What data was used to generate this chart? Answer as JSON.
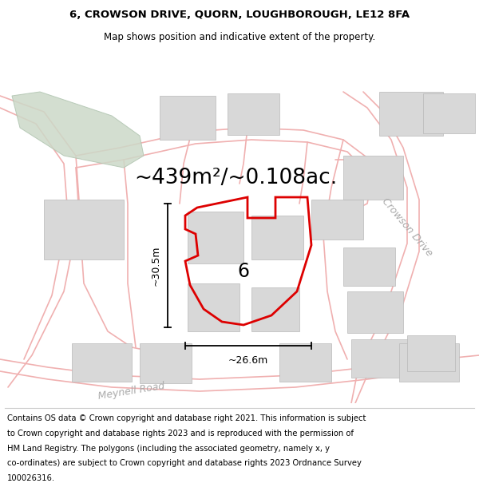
{
  "title_line1": "6, CROWSON DRIVE, QUORN, LOUGHBOROUGH, LE12 8FA",
  "title_line2": "Map shows position and indicative extent of the property.",
  "area_text": "~439m²/~0.108ac.",
  "label_number": "6",
  "width_label": "~26.6m",
  "height_label": "~30.5m",
  "road_label1": "Crowson Drive",
  "road_label2": "Meynell Road",
  "footer_lines": [
    "Contains OS data © Crown copyright and database right 2021. This information is subject",
    "to Crown copyright and database rights 2023 and is reproduced with the permission of",
    "HM Land Registry. The polygons (including the associated geometry, namely x, y",
    "co-ordinates) are subject to Crown copyright and database rights 2023 Ordnance Survey",
    "100026316."
  ],
  "road_color": "#f0b0b0",
  "road_lw": 1.2,
  "property_outline_color": "#dd0000",
  "property_lw": 2.0,
  "gray_building_face": "#d8d8d8",
  "gray_building_edge": "#b8b8b8",
  "green_face": "#ccd9c8",
  "green_edge": "#b0c4b0",
  "title_fontsize": 9.5,
  "subtitle_fontsize": 8.5,
  "area_fontsize": 19,
  "label_fontsize": 17,
  "road_label_fontsize": 9,
  "dim_fontsize": 9,
  "footer_fontsize": 7.2
}
